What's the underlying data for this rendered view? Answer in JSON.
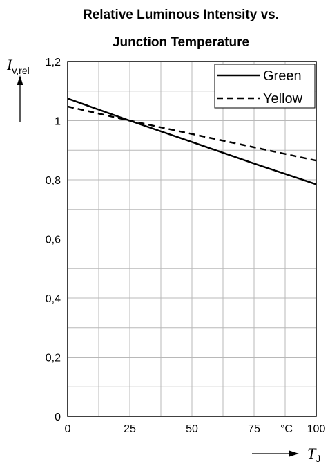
{
  "chart_data": {
    "type": "line",
    "title_lines": [
      "Relative Luminous Intensity vs.",
      "Junction Temperature"
    ],
    "xlabel": "T",
    "xlabel_sub": "J",
    "ylabel": "I",
    "ylabel_sub": "v,rel",
    "x_unit": "°C",
    "xlim": [
      0,
      100
    ],
    "ylim": [
      0,
      1.2
    ],
    "x_ticks": [
      0,
      25,
      50,
      75,
      100
    ],
    "x_tick_labels": [
      "0",
      "25",
      "50",
      "75",
      "100"
    ],
    "y_ticks": [
      0,
      0.2,
      0.4,
      0.6,
      0.8,
      1.0,
      1.2
    ],
    "y_tick_labels": [
      "0",
      "0,2",
      "0,4",
      "0,6",
      "0,8",
      "1",
      "1,2"
    ],
    "grid": true,
    "x_grid_step": 12.5,
    "y_grid_step": 0.1,
    "legend_position": "top-right",
    "series": [
      {
        "name": "Green",
        "style": "solid",
        "color": "#000000",
        "x": [
          0,
          25,
          50,
          75,
          100
        ],
        "y": [
          1.075,
          1.0,
          0.928,
          0.855,
          0.785
        ]
      },
      {
        "name": "Yellow",
        "style": "dashed",
        "color": "#000000",
        "x": [
          0,
          25,
          50,
          75,
          100
        ],
        "y": [
          1.048,
          1.0,
          0.955,
          0.91,
          0.865
        ]
      }
    ]
  }
}
